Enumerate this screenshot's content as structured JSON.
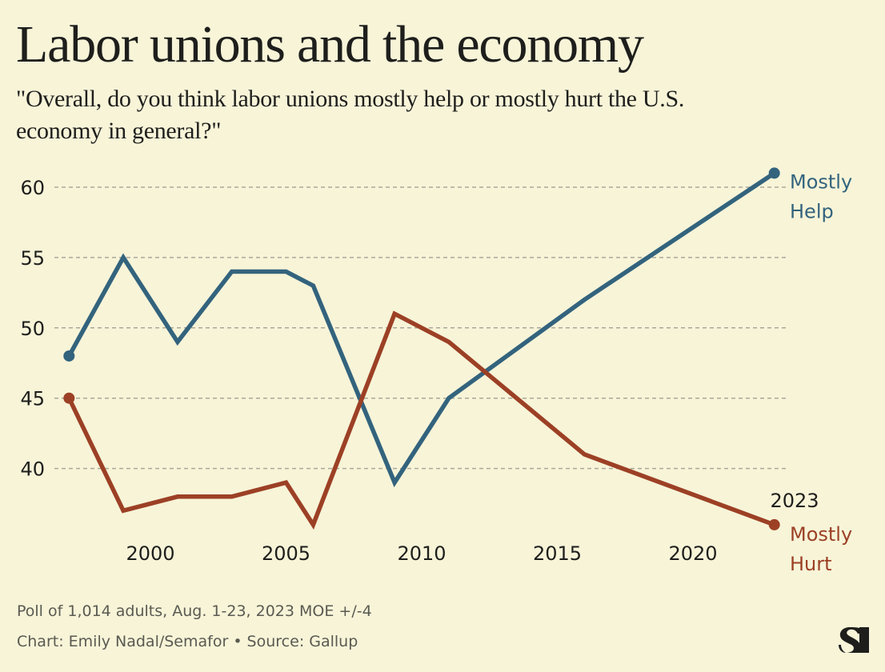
{
  "header": {
    "title": "Labor unions and the economy",
    "subtitle_lines": [
      "\"Overall, do you think labor unions mostly help or mostly hurt the U.S.",
      "economy in general?\""
    ]
  },
  "footer": {
    "note": "Poll of 1,014 adults, Aug. 1-23, 2023 MOE +/-4",
    "credit": "Chart: Emily Nadal/Semafor • Source: Gallup"
  },
  "logo": {
    "name": "semafor-logo",
    "glyph": "S"
  },
  "colors": {
    "background": "#f7f4d8",
    "help": "#33637d",
    "hurt": "#9c4025",
    "grid": "#aaa89a",
    "text": "#1e1e1c",
    "muted": "#5a5a52"
  },
  "chart_data": {
    "type": "line",
    "title": "Labor unions and the economy",
    "subtitle": "\"Overall, do you think labor unions mostly help or mostly hurt the U.S. economy in general?\"",
    "xlabel": "",
    "ylabel": "",
    "x": [
      1997,
      1999,
      2001,
      2003,
      2005,
      2006,
      2009,
      2011,
      2016,
      2023
    ],
    "series": [
      {
        "name": "Mostly Help",
        "label_lines": [
          "Mostly",
          "Help"
        ],
        "color": "#33637d",
        "values": [
          48,
          55,
          49,
          54,
          54,
          53,
          39,
          45,
          52,
          61
        ]
      },
      {
        "name": "Mostly Hurt",
        "label_lines": [
          "Mostly",
          "Hurt"
        ],
        "color": "#9c4025",
        "values": [
          45,
          37,
          38,
          38,
          39,
          36,
          51,
          49,
          41,
          36
        ]
      }
    ],
    "xlim": [
      1997,
      2023
    ],
    "ylim": [
      36,
      61
    ],
    "x_ticks": [
      2000,
      2005,
      2010,
      2015,
      2020
    ],
    "y_ticks": [
      40,
      45,
      50,
      55,
      60
    ],
    "end_annotation": "2023",
    "grid": "horizontal-dashed",
    "legend": "direct-labels-right",
    "markers": "endpoints"
  }
}
